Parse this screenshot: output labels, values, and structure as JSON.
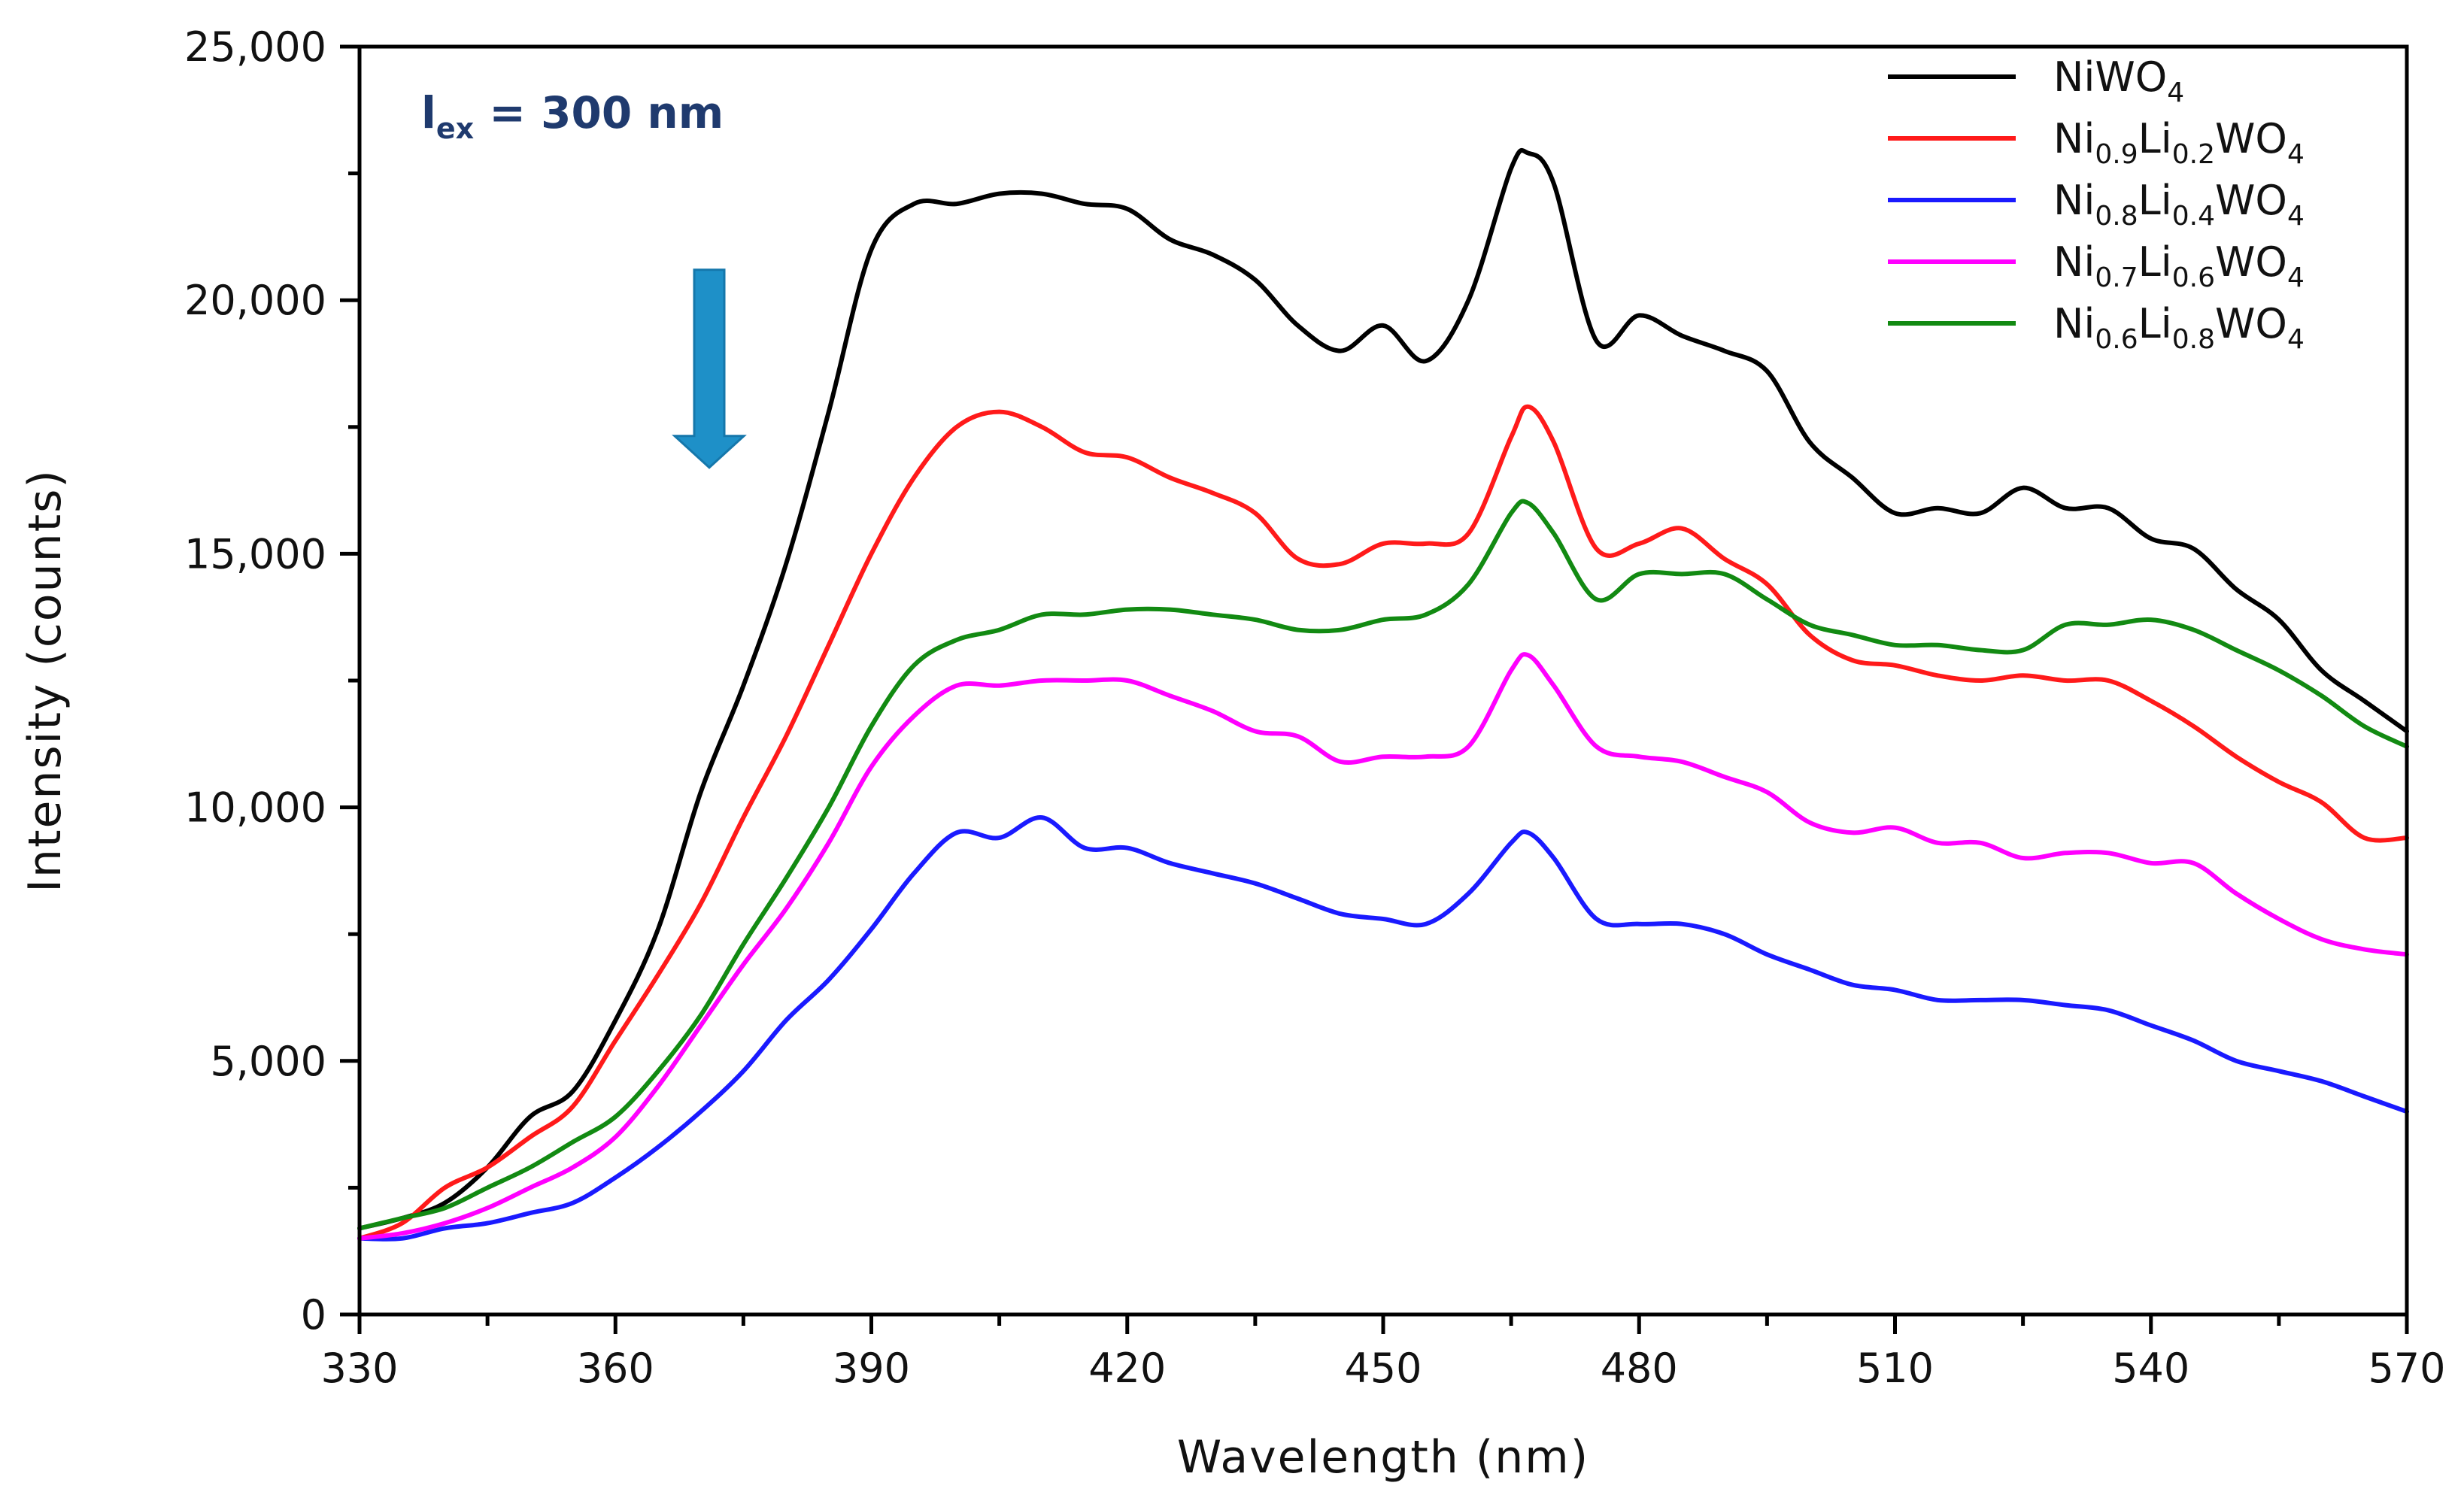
{
  "chart_data": {
    "type": "line",
    "title": "",
    "xlabel": "Wavelength (nm)",
    "ylabel": "Intensity (counts)",
    "xlim": [
      330,
      570
    ],
    "ylim": [
      0,
      25000
    ],
    "x_ticks": [
      330,
      360,
      390,
      420,
      450,
      480,
      510,
      540,
      570
    ],
    "x_tick_labels": [
      "330",
      "360",
      "390",
      "420",
      "450",
      "480",
      "510",
      "540",
      "570"
    ],
    "y_ticks": [
      0,
      5000,
      10000,
      15000,
      20000,
      25000
    ],
    "y_tick_labels": [
      "0",
      "5,000",
      "10,000",
      "15,000",
      "20,000",
      "25,000"
    ],
    "grid": false,
    "legend_position": "top-right",
    "annotation": {
      "main": "l",
      "sub": "ex",
      "rest": " = 300 nm",
      "color": "#1f3a6e"
    },
    "arrow": {
      "label": "decreasing intensity",
      "color": "#1e90c8",
      "x": 371,
      "y_top": 20600,
      "y_bottom": 16700
    },
    "x": [
      330,
      335,
      340,
      345,
      350,
      355,
      360,
      365,
      370,
      375,
      380,
      385,
      390,
      395,
      400,
      405,
      410,
      415,
      420,
      425,
      430,
      435,
      440,
      445,
      450,
      455,
      460,
      465,
      467,
      470,
      475,
      480,
      485,
      490,
      495,
      500,
      505,
      510,
      515,
      520,
      525,
      530,
      535,
      540,
      545,
      550,
      555,
      560,
      565,
      570
    ],
    "series": [
      {
        "name": "NiWO4",
        "label_parts": [
          {
            "t": "NiWO",
            "sub": false
          },
          {
            "t": "4",
            "sub": true
          }
        ],
        "color": "#000000",
        "values": [
          1700,
          1900,
          2200,
          2900,
          3900,
          4400,
          5800,
          7600,
          10300,
          12400,
          14800,
          17800,
          21000,
          21900,
          21900,
          22100,
          22100,
          21900,
          21800,
          21200,
          20900,
          20400,
          19500,
          19000,
          19500,
          18800,
          20000,
          22600,
          22900,
          22300,
          19200,
          19700,
          19300,
          19000,
          18600,
          17200,
          16500,
          15800,
          15900,
          15800,
          16300,
          15900,
          15900,
          15300,
          15100,
          14300,
          13700,
          12700,
          12100,
          11500
        ]
      },
      {
        "name": "Ni0.9Li0.2WO4",
        "label_parts": [
          {
            "t": "Ni",
            "sub": false
          },
          {
            "t": "0.9",
            "sub": true
          },
          {
            "t": "Li",
            "sub": false
          },
          {
            "t": "0.2",
            "sub": true
          },
          {
            "t": "WO",
            "sub": false
          },
          {
            "t": "4",
            "sub": true
          }
        ],
        "color": "#ff1a1a",
        "values": [
          1500,
          1800,
          2500,
          2900,
          3500,
          4100,
          5400,
          6700,
          8100,
          9800,
          11400,
          13200,
          15000,
          16500,
          17500,
          17800,
          17500,
          17000,
          16900,
          16500,
          16200,
          15800,
          14900,
          14800,
          15200,
          15200,
          15400,
          17300,
          17900,
          17200,
          15100,
          15200,
          15500,
          14900,
          14400,
          13400,
          12900,
          12800,
          12600,
          12500,
          12600,
          12500,
          12500,
          12100,
          11600,
          11000,
          10500,
          10100,
          9400,
          9400
        ]
      },
      {
        "name": "Ni0.8Li0.4WO4",
        "label_parts": [
          {
            "t": "Ni",
            "sub": false
          },
          {
            "t": "0.8",
            "sub": true
          },
          {
            "t": "Li",
            "sub": false
          },
          {
            "t": "0.4",
            "sub": true
          },
          {
            "t": "WO",
            "sub": false
          },
          {
            "t": "4",
            "sub": true
          }
        ],
        "color": "#1a1aff",
        "values": [
          1500,
          1500,
          1700,
          1800,
          2000,
          2200,
          2700,
          3300,
          4000,
          4800,
          5800,
          6600,
          7600,
          8700,
          9500,
          9400,
          9800,
          9200,
          9200,
          8900,
          8700,
          8500,
          8200,
          7900,
          7800,
          7700,
          8300,
          9300,
          9500,
          9000,
          7800,
          7700,
          7700,
          7500,
          7100,
          6800,
          6500,
          6400,
          6200,
          6200,
          6200,
          6100,
          6000,
          5700,
          5400,
          5000,
          4800,
          4600,
          4300,
          4000
        ]
      },
      {
        "name": "Ni0.7Li0.6WO4",
        "label_parts": [
          {
            "t": "Ni",
            "sub": false
          },
          {
            "t": "0.7",
            "sub": true
          },
          {
            "t": "Li",
            "sub": false
          },
          {
            "t": "0.6",
            "sub": true
          },
          {
            "t": "WO",
            "sub": false
          },
          {
            "t": "4",
            "sub": true
          }
        ],
        "color": "#ff00ff",
        "values": [
          1500,
          1600,
          1800,
          2100,
          2500,
          2900,
          3500,
          4500,
          5700,
          6900,
          8000,
          9300,
          10800,
          11800,
          12400,
          12400,
          12500,
          12500,
          12500,
          12200,
          11900,
          11500,
          11400,
          10900,
          11000,
          11000,
          11200,
          12700,
          13000,
          12400,
          11200,
          11000,
          10900,
          10600,
          10300,
          9700,
          9500,
          9600,
          9300,
          9300,
          9000,
          9100,
          9100,
          8900,
          8900,
          8300,
          7800,
          7400,
          7200,
          7100
        ]
      },
      {
        "name": "Ni0.6Li0.8WO4",
        "label_parts": [
          {
            "t": "Ni",
            "sub": false
          },
          {
            "t": "0.6",
            "sub": true
          },
          {
            "t": "Li",
            "sub": false
          },
          {
            "t": "0.8",
            "sub": true
          },
          {
            "t": "WO",
            "sub": false
          },
          {
            "t": "4",
            "sub": true
          }
        ],
        "color": "#128a12",
        "values": [
          1700,
          1900,
          2100,
          2500,
          2900,
          3400,
          3900,
          4800,
          5900,
          7300,
          8600,
          10000,
          11600,
          12800,
          13300,
          13500,
          13800,
          13800,
          13900,
          13900,
          13800,
          13700,
          13500,
          13500,
          13700,
          13800,
          14400,
          15800,
          16000,
          15400,
          14100,
          14600,
          14600,
          14600,
          14100,
          13600,
          13400,
          13200,
          13200,
          13100,
          13100,
          13600,
          13600,
          13700,
          13500,
          13100,
          12700,
          12200,
          11600,
          11200
        ]
      }
    ]
  }
}
